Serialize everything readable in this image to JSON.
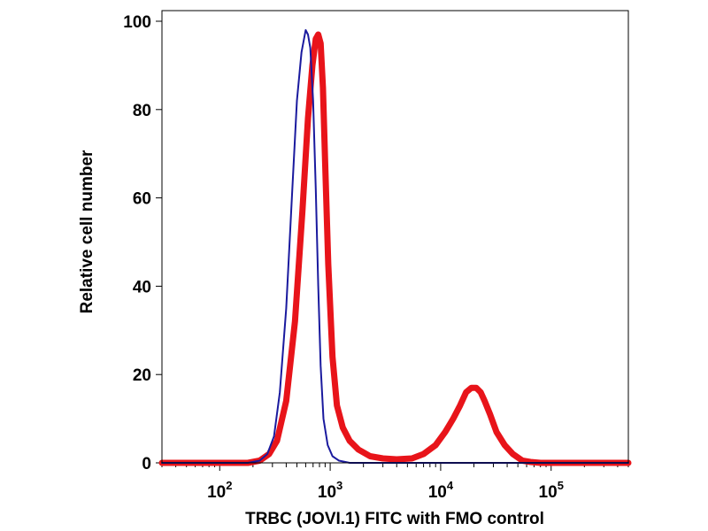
{
  "chart_data": {
    "type": "line",
    "title": "",
    "xlabel": "TRBC (JOVI.1) FITC with FMO control",
    "ylabel": "Relative cell number",
    "x_scale": "log",
    "xlim": [
      30,
      500000
    ],
    "ylim": [
      0,
      100
    ],
    "grid": false,
    "y_ticks": [
      0,
      20,
      40,
      60,
      80,
      100
    ],
    "y_tick_labels": [
      "0",
      "20",
      "40",
      "60",
      "80",
      "100"
    ],
    "x_ticks": [
      100,
      1000,
      10000,
      100000
    ],
    "x_tick_labels": [
      {
        "base": "10",
        "exp": "2"
      },
      {
        "base": "10",
        "exp": "3"
      },
      {
        "base": "10",
        "exp": "4"
      },
      {
        "base": "10",
        "exp": "5"
      }
    ],
    "series": [
      {
        "color": "#e8141a",
        "x": [
          30,
          180,
          230,
          280,
          330,
          400,
          480,
          560,
          630,
          690,
          740,
          780,
          820,
          860,
          900,
          960,
          1050,
          1150,
          1300,
          1500,
          1800,
          2300,
          3000,
          4000,
          5500,
          7000,
          9000,
          11000,
          13000,
          15000,
          17000,
          19000,
          21000,
          23000,
          25000,
          28000,
          32000,
          38000,
          45000,
          55000,
          65000,
          80000,
          500000
        ],
        "y": [
          0,
          0,
          0.5,
          2,
          5,
          14,
          32,
          57,
          78,
          90,
          96,
          97,
          95,
          85,
          68,
          45,
          24,
          13,
          8,
          5,
          3,
          1.5,
          1,
          0.8,
          1,
          2,
          4,
          7,
          10,
          13,
          16,
          17,
          17,
          16,
          14,
          11,
          7,
          4,
          2,
          0.5,
          0.2,
          0,
          0
        ]
      },
      {
        "color": "#1a1a9e",
        "x": [
          30,
          180,
          230,
          270,
          310,
          350,
          400,
          450,
          500,
          550,
          600,
          630,
          660,
          700,
          740,
          780,
          820,
          870,
          950,
          1050,
          1200,
          1500,
          500000
        ],
        "y": [
          0,
          0,
          0.5,
          2,
          6,
          16,
          35,
          60,
          82,
          93,
          98,
          97,
          94,
          82,
          62,
          40,
          22,
          10,
          4,
          1.5,
          0.5,
          0,
          0
        ]
      }
    ]
  }
}
